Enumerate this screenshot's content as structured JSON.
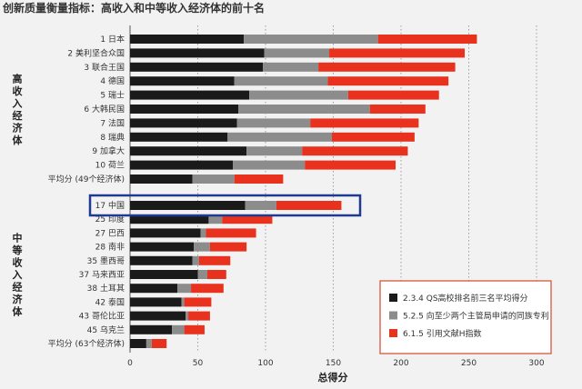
{
  "chart_data": {
    "type": "bar",
    "stacked": true,
    "orientation": "horizontal",
    "title": "创新质量衡量指标：高收入和中等收入经济体的前十名",
    "xlabel": "总得分",
    "xlim": [
      0,
      300
    ],
    "xticks": [
      0,
      50,
      100,
      150,
      200,
      250,
      300
    ],
    "grid": "vertical-dotted",
    "groups": [
      {
        "label": "高收入经济体",
        "first": 0,
        "last": 10
      },
      {
        "label": "中等收入经济体",
        "first": 11,
        "last": 21
      }
    ],
    "highlight": "17 中国",
    "categories": [
      "1 日本",
      "2 美利坚合众国",
      "3 联合王国",
      "4 德国",
      "5 瑞士",
      "6 大韩民国",
      "7 法国",
      "8 瑞典",
      "9 加拿大",
      "10 荷兰",
      "平均分 (49个经济体)",
      "17 中国",
      "25 印度",
      "27 巴西",
      "28 南非",
      "35 墨西哥",
      "37 马来西亚",
      "38 土耳其",
      "42 泰国",
      "43 哥伦比亚",
      "45 乌克兰",
      "平均分 (63个经济体)"
    ],
    "series": [
      {
        "name": "2.3.4 QS高校排名前三名平均得分",
        "color": "#1a1a1a",
        "values": [
          84,
          99,
          98,
          77,
          88,
          80,
          79,
          72,
          86,
          76,
          46,
          85,
          58,
          52,
          47,
          46,
          50,
          35,
          38,
          41,
          31,
          12
        ]
      },
      {
        "name": "5.2.5 向至少两个主管局申请的同族专利",
        "color": "#8c8c8c",
        "values": [
          99,
          48,
          41,
          69,
          73,
          97,
          54,
          77,
          41,
          53,
          31,
          23,
          10,
          4,
          12,
          5,
          7,
          10,
          2,
          2,
          9,
          4
        ]
      },
      {
        "name": "6.1.5 引用文献H指数",
        "color": "#e8321e",
        "values": [
          73,
          100,
          101,
          89,
          67,
          41,
          80,
          61,
          78,
          67,
          36,
          48,
          37,
          37,
          27,
          23,
          14,
          24,
          20,
          16,
          15,
          11
        ]
      }
    ],
    "legend_position": "bottom-right"
  }
}
